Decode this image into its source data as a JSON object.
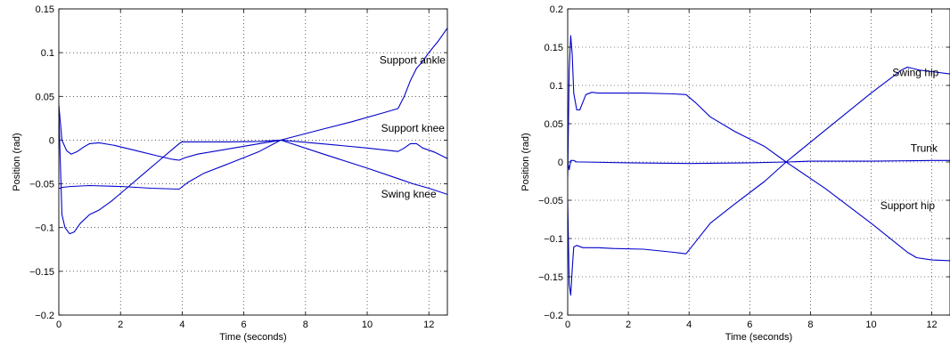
{
  "chart_data": [
    {
      "type": "line",
      "title": "",
      "xlabel": "Time (seconds)",
      "ylabel": "Position (rad)",
      "xlim": [
        0,
        12.6
      ],
      "ylim": [
        -0.2,
        0.15
      ],
      "xticks": [
        0,
        2,
        4,
        6,
        8,
        10,
        12
      ],
      "yticks": [
        0.15,
        0.1,
        0.05,
        0,
        -0.05,
        -0.1,
        -0.15,
        -0.2
      ],
      "ytick_labels": [
        "0.15",
        "0.1",
        "0.05",
        "0",
        "−0.05",
        "−0.1",
        "−0.15",
        "−0.2"
      ],
      "grid": true,
      "line_color": "#0000cc",
      "series": [
        {
          "name": "Support ankle",
          "x": [
            0,
            0.1,
            0.2,
            0.35,
            0.5,
            0.7,
            1.0,
            1.3,
            1.7,
            2.2,
            2.7,
            3.2,
            3.6,
            3.9,
            4.0,
            4.2,
            4.6,
            5.5,
            6.5,
            7.2,
            8.5,
            9.5,
            10.5,
            11.0,
            11.2,
            11.4,
            11.6,
            11.8,
            12.0,
            12.3,
            12.6
          ],
          "values": [
            0.03,
            -0.085,
            -0.1,
            -0.107,
            -0.105,
            -0.095,
            -0.085,
            -0.08,
            -0.07,
            -0.055,
            -0.04,
            -0.025,
            -0.013,
            -0.004,
            -0.002,
            -0.002,
            -0.002,
            -0.002,
            -0.0015,
            0.0,
            0.012,
            0.021,
            0.031,
            0.036,
            0.05,
            0.068,
            0.082,
            0.09,
            0.1,
            0.113,
            0.128
          ]
        },
        {
          "name": "Support knee",
          "x": [
            0,
            0.1,
            0.25,
            0.4,
            0.6,
            0.8,
            1.0,
            1.3,
            1.8,
            2.5,
            3.2,
            3.7,
            3.9,
            4.1,
            4.5,
            5.5,
            6.5,
            7.2,
            8.5,
            10.0,
            11.0,
            11.2,
            11.4,
            11.6,
            11.8,
            12.2,
            12.6
          ],
          "values": [
            0.04,
            0.0,
            -0.012,
            -0.016,
            -0.013,
            -0.008,
            -0.004,
            -0.003,
            -0.006,
            -0.012,
            -0.018,
            -0.022,
            -0.023,
            -0.02,
            -0.016,
            -0.01,
            -0.004,
            0.0,
            -0.004,
            -0.009,
            -0.013,
            -0.009,
            -0.004,
            -0.004,
            -0.009,
            -0.014,
            -0.021
          ]
        },
        {
          "name": "Swing knee",
          "x": [
            0,
            0.05,
            0.1,
            0.4,
            1.0,
            2.0,
            3.0,
            3.9,
            4.2,
            4.7,
            5.5,
            6.5,
            7.2,
            8.5,
            10.0,
            11.0,
            11.5,
            12.0,
            12.6
          ],
          "values": [
            -0.055,
            -0.055,
            -0.054,
            -0.053,
            -0.052,
            -0.053,
            -0.055,
            -0.056,
            -0.048,
            -0.038,
            -0.027,
            -0.013,
            0.0,
            -0.015,
            -0.032,
            -0.044,
            -0.05,
            -0.055,
            -0.062
          ]
        }
      ],
      "annotations": [
        {
          "text": "Support ankle",
          "x": 10.4,
          "y": 0.0875
        },
        {
          "text": "Support knee",
          "x": 10.45,
          "y": 0.0095
        },
        {
          "text": "Swing knee",
          "x": 10.45,
          "y": -0.0655
        }
      ]
    },
    {
      "type": "line",
      "title": "",
      "xlabel": "Time (seconds)",
      "ylabel": "Position (rad)",
      "xlim": [
        0,
        12.6
      ],
      "ylim": [
        -0.2,
        0.2
      ],
      "xticks": [
        0,
        2,
        4,
        6,
        8,
        10,
        12
      ],
      "yticks": [
        0.2,
        0.15,
        0.1,
        0.05,
        0,
        -0.05,
        -0.1,
        -0.15,
        -0.2
      ],
      "ytick_labels": [
        "0.2",
        "0.15",
        "0.1",
        "0.05",
        "0",
        "−0.05",
        "−0.1",
        "−0.15",
        "−0.2"
      ],
      "grid": true,
      "line_color": "#0000cc",
      "series": [
        {
          "name": "Swing hip",
          "x": [
            0,
            0.05,
            0.1,
            0.15,
            0.2,
            0.3,
            0.4,
            0.5,
            0.6,
            0.8,
            1.0,
            1.5,
            2.5,
            3.5,
            3.9,
            4.2,
            4.7,
            5.5,
            6.5,
            7.2,
            8.5,
            10.0,
            11.2,
            11.5,
            12.0,
            12.6
          ],
          "values": [
            -0.02,
            0.12,
            0.165,
            0.14,
            0.09,
            0.068,
            0.068,
            0.078,
            0.088,
            0.091,
            0.09,
            0.09,
            0.09,
            0.089,
            0.088,
            0.078,
            0.059,
            0.04,
            0.02,
            0.0,
            -0.035,
            -0.08,
            -0.118,
            -0.125,
            -0.128,
            -0.129
          ]
        },
        {
          "name": "Trunk",
          "x": [
            0,
            0.05,
            0.1,
            0.2,
            0.3,
            0.5,
            2.0,
            4.0,
            6.0,
            7.2,
            8.0,
            10.0,
            12.0,
            12.6
          ],
          "values": [
            0.0,
            -0.01,
            0.002,
            0.002,
            0.0,
            0.0,
            -0.001,
            -0.002,
            -0.001,
            0.0,
            0.001,
            0.001,
            0.002,
            0.002
          ]
        },
        {
          "name": "Support hip",
          "x": [
            0,
            0.05,
            0.1,
            0.15,
            0.2,
            0.3,
            0.5,
            1.0,
            1.5,
            2.5,
            3.5,
            3.9,
            4.2,
            4.7,
            5.5,
            6.5,
            7.2,
            8.5,
            10.0,
            11.0,
            11.2,
            11.4,
            11.6,
            12.0,
            12.6
          ],
          "values": [
            -0.05,
            -0.16,
            -0.174,
            -0.14,
            -0.111,
            -0.109,
            -0.112,
            -0.112,
            -0.113,
            -0.114,
            -0.118,
            -0.12,
            -0.105,
            -0.08,
            -0.055,
            -0.025,
            0.0,
            0.042,
            0.09,
            0.12,
            0.124,
            0.122,
            0.12,
            0.118,
            0.115
          ]
        }
      ],
      "annotations": [
        {
          "text": "Swing hip",
          "x": 10.7,
          "y": 0.112
        },
        {
          "text": "Trunk",
          "x": 11.3,
          "y": 0.0135
        },
        {
          "text": "Support hip",
          "x": 10.3,
          "y": -0.0615
        }
      ]
    }
  ]
}
